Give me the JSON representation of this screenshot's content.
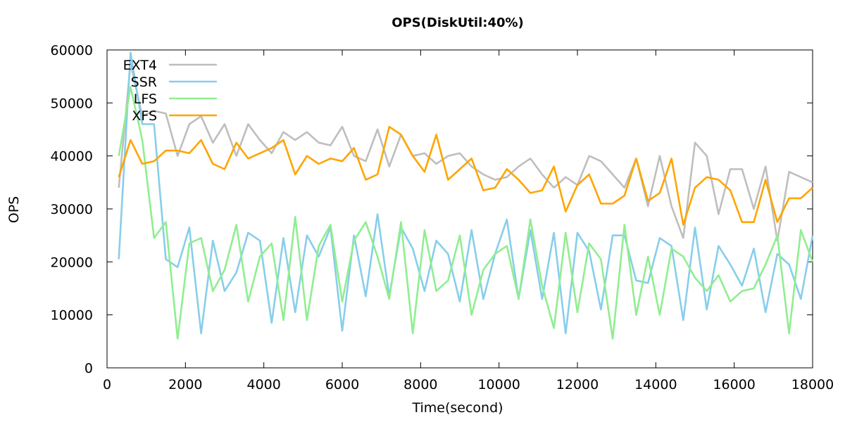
{
  "chart_data": {
    "type": "line",
    "title": "OPS(DiskUtil:40%)",
    "xlabel": "Time(second)",
    "ylabel": "OPS",
    "xlim": [
      0,
      18000
    ],
    "ylim": [
      0,
      60000
    ],
    "x_ticks": [
      0,
      2000,
      4000,
      6000,
      8000,
      10000,
      12000,
      14000,
      16000,
      18000
    ],
    "y_ticks": [
      0,
      10000,
      20000,
      30000,
      40000,
      50000,
      60000
    ],
    "grid": false,
    "legend_position": "top-left",
    "x": [
      300,
      600,
      900,
      1200,
      1500,
      1800,
      2100,
      2400,
      2700,
      3000,
      3300,
      3600,
      3900,
      4200,
      4500,
      4800,
      5100,
      5400,
      5700,
      6000,
      6300,
      6600,
      6900,
      7200,
      7500,
      7800,
      8100,
      8400,
      8700,
      9000,
      9300,
      9600,
      9900,
      10200,
      10500,
      10800,
      11100,
      11400,
      11700,
      12000,
      12300,
      12600,
      12900,
      13200,
      13500,
      13800,
      14100,
      14400,
      14700,
      15000,
      15300,
      15600,
      15900,
      16200,
      16500,
      16800,
      17100,
      17400,
      17700,
      18000
    ],
    "series": [
      {
        "name": "EXT4",
        "color": "#bebebe",
        "values": [
          34000,
          57500,
          47500,
          48500,
          48000,
          40000,
          46000,
          47500,
          42500,
          46000,
          40000,
          46000,
          43000,
          40500,
          44500,
          43000,
          44500,
          42500,
          42000,
          45500,
          40000,
          39000,
          45000,
          38000,
          44000,
          40000,
          40500,
          38500,
          40000,
          40500,
          38000,
          36500,
          35500,
          36000,
          38000,
          39500,
          36500,
          34000,
          36000,
          34500,
          40000,
          39000,
          36500,
          34000,
          39500,
          30500,
          40000,
          30500,
          24500,
          42500,
          40000,
          29000,
          37500,
          37500,
          30000,
          38000,
          24000,
          37000,
          36000,
          35000
        ]
      },
      {
        "name": "SSR",
        "color": "#87ceeb",
        "values": [
          20500,
          59500,
          46000,
          46000,
          20500,
          19000,
          26500,
          6500,
          24000,
          14500,
          18000,
          25500,
          24000,
          8500,
          24500,
          10500,
          25000,
          21000,
          26500,
          7000,
          25000,
          13500,
          29000,
          13500,
          26500,
          22500,
          14500,
          24000,
          21500,
          12500,
          26000,
          13000,
          21500,
          28000,
          13000,
          26000,
          13000,
          25500,
          6500,
          25500,
          22000,
          11000,
          25000,
          25000,
          16500,
          16000,
          24500,
          23000,
          9000,
          26500,
          11000,
          23000,
          19500,
          15500,
          22500,
          10500,
          21500,
          19500,
          13000,
          25000
        ]
      },
      {
        "name": "LFS",
        "color": "#90ee90",
        "values": [
          40000,
          53000,
          43000,
          24500,
          27500,
          5500,
          23500,
          24500,
          14500,
          18500,
          27000,
          12500,
          21000,
          23500,
          9000,
          28500,
          9000,
          23000,
          27000,
          12500,
          24000,
          27500,
          21000,
          13000,
          27500,
          6500,
          26000,
          14500,
          16500,
          25000,
          10000,
          18500,
          21500,
          23000,
          13000,
          28000,
          15500,
          7500,
          25500,
          10500,
          23500,
          20500,
          5500,
          27000,
          10000,
          21000,
          10000,
          22500,
          21000,
          17000,
          14500,
          17500,
          12500,
          14500,
          15000,
          19500,
          25000,
          6500,
          26000,
          20000
        ]
      },
      {
        "name": "XFS",
        "color": "#ffa500",
        "values": [
          36000,
          43000,
          38500,
          39000,
          41000,
          41000,
          40500,
          43000,
          38500,
          37500,
          42500,
          39500,
          40500,
          41500,
          43000,
          36500,
          40000,
          38500,
          39500,
          39000,
          41500,
          35500,
          36500,
          45500,
          44000,
          40000,
          37000,
          44000,
          35500,
          37500,
          39500,
          33500,
          34000,
          37500,
          35500,
          33000,
          33500,
          38000,
          29500,
          34500,
          36500,
          31000,
          31000,
          32500,
          39500,
          31500,
          33000,
          39500,
          27000,
          34000,
          36000,
          35500,
          33500,
          27500,
          27500,
          35500,
          27500,
          32000,
          32000,
          34000
        ]
      }
    ]
  }
}
